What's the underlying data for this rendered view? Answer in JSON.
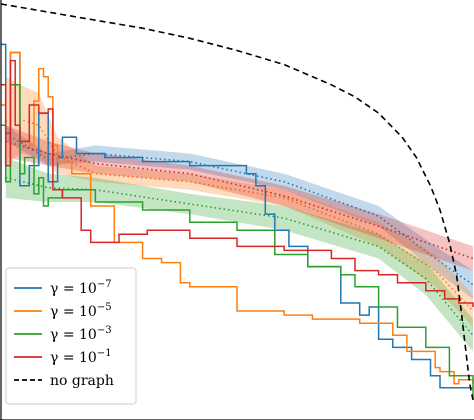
{
  "chart_data": {
    "type": "line",
    "title": "",
    "xlabel": "",
    "ylabel": "",
    "xlim": [
      0,
      100
    ],
    "ylim": [
      0,
      100
    ],
    "grid": false,
    "legend_placement": "bottom-left",
    "series": [
      {
        "name": "γ = 10⁻⁷",
        "legend_base": "γ = 10",
        "legend_exp": "−7",
        "color": "#1f77b4",
        "style": "solid",
        "values": [
          [
            0,
            90
          ],
          [
            1,
            68
          ],
          [
            2,
            88
          ],
          [
            4,
            55
          ],
          [
            6,
            60
          ],
          [
            8,
            73
          ],
          [
            10,
            56
          ],
          [
            12,
            62
          ],
          [
            13,
            67
          ],
          [
            16,
            63
          ],
          [
            22,
            62
          ],
          [
            30,
            61
          ],
          [
            40,
            60
          ],
          [
            52,
            58
          ],
          [
            54,
            55
          ],
          [
            56,
            48
          ],
          [
            58,
            44
          ],
          [
            61,
            40
          ],
          [
            65,
            35
          ],
          [
            72,
            26
          ],
          [
            76,
            23
          ],
          [
            78,
            25
          ],
          [
            80,
            17
          ],
          [
            83,
            15
          ],
          [
            87,
            12
          ],
          [
            91,
            8
          ],
          [
            93,
            5
          ],
          [
            97,
            5
          ],
          [
            100,
            5
          ]
        ],
        "band": [
          [
            1,
            70,
            66
          ],
          [
            10,
            63,
            60
          ],
          [
            20,
            65,
            61
          ],
          [
            40,
            63,
            59
          ],
          [
            60,
            58,
            54
          ],
          [
            80,
            50,
            45
          ],
          [
            92,
            40,
            34
          ],
          [
            100,
            34,
            27
          ]
        ]
      },
      {
        "name": "γ = 10⁻⁵",
        "legend_base": "γ = 10",
        "legend_exp": "−5",
        "color": "#ff7f0e",
        "style": "solid",
        "values": [
          [
            0,
            75
          ],
          [
            1,
            60
          ],
          [
            2,
            88
          ],
          [
            4,
            66
          ],
          [
            6,
            65
          ],
          [
            7,
            76
          ],
          [
            8,
            84
          ],
          [
            9,
            82
          ],
          [
            10,
            77
          ],
          [
            11,
            65
          ],
          [
            12,
            61
          ],
          [
            15,
            58
          ],
          [
            17,
            58
          ],
          [
            19,
            50
          ],
          [
            24,
            41
          ],
          [
            30,
            37
          ],
          [
            34,
            36
          ],
          [
            38,
            31
          ],
          [
            40,
            30
          ],
          [
            50,
            24
          ],
          [
            58,
            24
          ],
          [
            60,
            23
          ],
          [
            66,
            22
          ],
          [
            70,
            22
          ],
          [
            76,
            21
          ],
          [
            83,
            18
          ],
          [
            86,
            14
          ],
          [
            91,
            14
          ],
          [
            92,
            10
          ],
          [
            93,
            9
          ],
          [
            96,
            6
          ],
          [
            97,
            7
          ],
          [
            100,
            6
          ]
        ],
        "band": [
          [
            1,
            82,
            60
          ],
          [
            4,
            80,
            63
          ],
          [
            8,
            78,
            62
          ],
          [
            12,
            67,
            58
          ],
          [
            20,
            60,
            56
          ],
          [
            40,
            58,
            54
          ],
          [
            60,
            54,
            50
          ],
          [
            80,
            46,
            40
          ],
          [
            92,
            38,
            30
          ],
          [
            100,
            28,
            20
          ]
        ]
      },
      {
        "name": "γ = 10⁻³",
        "legend_base": "γ = 10",
        "legend_exp": "−3",
        "color": "#2ca02c",
        "style": "solid",
        "values": [
          [
            0,
            70
          ],
          [
            1,
            56
          ],
          [
            2,
            80
          ],
          [
            4,
            58
          ],
          [
            5,
            62
          ],
          [
            7,
            53
          ],
          [
            8,
            57
          ],
          [
            9,
            50
          ],
          [
            10,
            52
          ],
          [
            13,
            54
          ],
          [
            20,
            51
          ],
          [
            30,
            49
          ],
          [
            40,
            46
          ],
          [
            50,
            44
          ],
          [
            58,
            38
          ],
          [
            65,
            35
          ],
          [
            72,
            33
          ],
          [
            75,
            30
          ],
          [
            80,
            25
          ],
          [
            84,
            20
          ],
          [
            90,
            15
          ],
          [
            95,
            8
          ],
          [
            100,
            2
          ]
        ],
        "band": [
          [
            1,
            62,
            52
          ],
          [
            10,
            58,
            51
          ],
          [
            20,
            57,
            51
          ],
          [
            40,
            53,
            48
          ],
          [
            60,
            50,
            44
          ],
          [
            80,
            43,
            37
          ],
          [
            90,
            36,
            28
          ],
          [
            100,
            22,
            14
          ]
        ]
      },
      {
        "name": "γ = 10⁻¹",
        "legend_base": "γ = 10",
        "legend_exp": "−1",
        "color": "#d62728",
        "style": "solid",
        "values": [
          [
            0,
            80
          ],
          [
            1,
            60
          ],
          [
            2,
            86
          ],
          [
            3,
            70
          ],
          [
            4,
            66
          ],
          [
            6,
            75
          ],
          [
            8,
            73
          ],
          [
            10,
            74
          ],
          [
            11,
            54
          ],
          [
            13,
            52
          ],
          [
            17,
            44
          ],
          [
            19,
            41
          ],
          [
            25,
            43
          ],
          [
            31,
            44
          ],
          [
            40,
            42
          ],
          [
            50,
            40
          ],
          [
            60,
            39
          ],
          [
            70,
            37
          ],
          [
            75,
            34
          ],
          [
            80,
            33
          ],
          [
            84,
            31
          ],
          [
            90,
            29
          ],
          [
            94,
            27
          ],
          [
            97,
            26
          ],
          [
            100,
            25
          ]
        ],
        "band": [
          [
            1,
            70,
            62
          ],
          [
            10,
            66,
            60
          ],
          [
            20,
            63,
            58
          ],
          [
            40,
            60,
            56
          ],
          [
            60,
            55,
            50
          ],
          [
            80,
            48,
            42
          ],
          [
            95,
            42,
            36
          ],
          [
            100,
            40,
            34
          ]
        ]
      },
      {
        "name": "no graph",
        "legend_base": "no graph",
        "legend_exp": "",
        "color": "#000000",
        "style": "dashed",
        "values": [
          [
            0,
            100
          ],
          [
            10,
            98
          ],
          [
            20,
            96
          ],
          [
            30,
            94
          ],
          [
            40,
            91.5
          ],
          [
            50,
            88.5
          ],
          [
            60,
            85
          ],
          [
            70,
            80
          ],
          [
            75,
            77
          ],
          [
            80,
            73
          ],
          [
            85,
            67
          ],
          [
            88,
            62
          ],
          [
            91,
            55
          ],
          [
            93,
            49
          ],
          [
            95,
            41
          ],
          [
            96.5,
            33
          ],
          [
            97.5,
            24
          ],
          [
            98.5,
            14
          ],
          [
            99.3,
            6
          ],
          [
            100,
            2
          ]
        ]
      }
    ]
  }
}
